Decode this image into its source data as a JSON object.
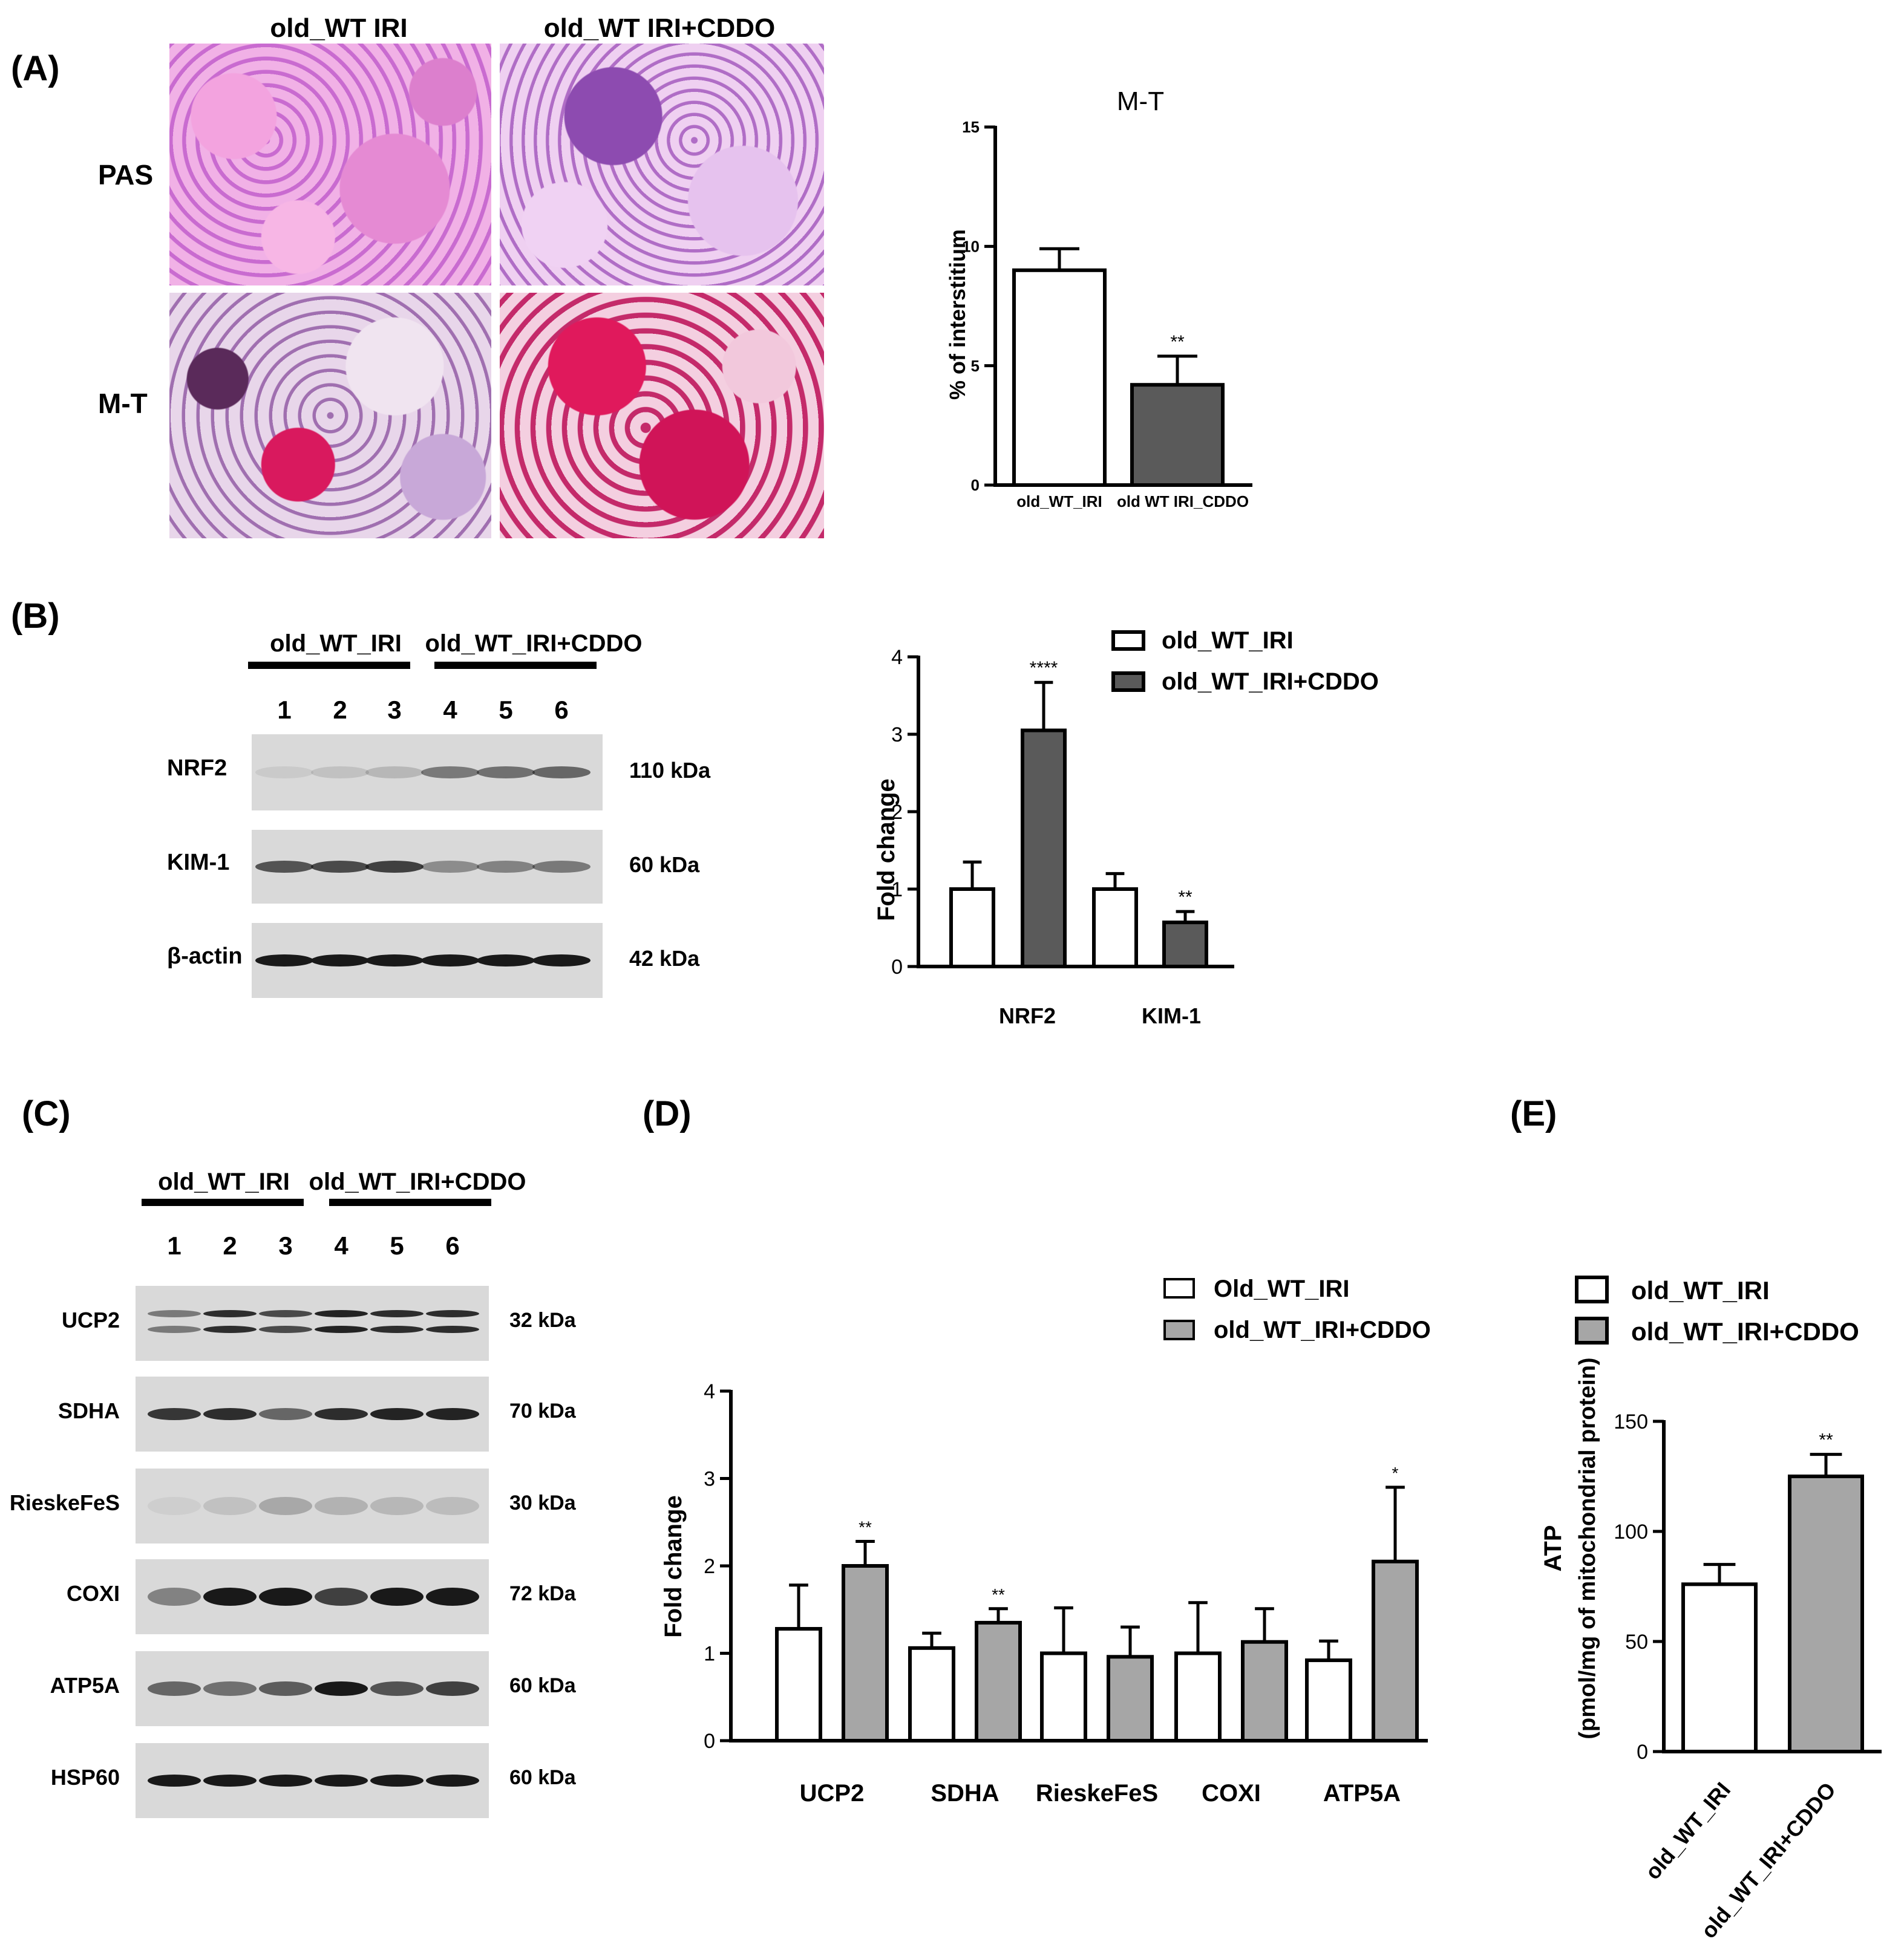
{
  "panelA": {
    "label": "(A)",
    "col_headers": [
      "old_WT IRI",
      "old_WT IRI+CDDO"
    ],
    "row_labels": [
      "PAS",
      "M-T"
    ]
  },
  "panelB": {
    "label": "(B)",
    "group_labels": [
      "old_WT_IRI",
      "old_WT_IRI+CDDO"
    ],
    "lanes": [
      "1",
      "2",
      "3",
      "4",
      "5",
      "6"
    ],
    "proteins": [
      {
        "name": "NRF2",
        "kda": "110 kDa"
      },
      {
        "name": "KIM-1",
        "kda": "60 kDa"
      },
      {
        "name": "β-actin",
        "kda": "42 kDa"
      }
    ]
  },
  "panelC": {
    "label": "(C)",
    "group_labels": [
      "old_WT_IRI",
      "old_WT_IRI+CDDO"
    ],
    "lanes": [
      "1",
      "2",
      "3",
      "4",
      "5",
      "6"
    ],
    "proteins": [
      {
        "name": "UCP2",
        "kda": "32 kDa"
      },
      {
        "name": "SDHA",
        "kda": "70 kDa"
      },
      {
        "name": "RieskeFeS",
        "kda": "30 kDa"
      },
      {
        "name": "COXI",
        "kda": "72 kDa"
      },
      {
        "name": "ATP5A",
        "kda": "60 kDa"
      },
      {
        "name": "HSP60",
        "kda": "60 kDa"
      }
    ]
  },
  "panelD": {
    "label": "(D)"
  },
  "panelE": {
    "label": "(E)"
  },
  "colors": {
    "treated_dark": "#5a5a5a",
    "treated_light": "#a6a6a6",
    "control": "#ffffff"
  },
  "chart_data": [
    {
      "type": "bar",
      "title": "M-T",
      "ylabel": "% of interstitium",
      "categories": [
        "old_WT_IRI",
        "old WT IRI_CDDO"
      ],
      "values": [
        9.0,
        4.2
      ],
      "errors": [
        0.9,
        1.2
      ],
      "significance": [
        "",
        "**"
      ],
      "ylim": [
        0,
        15
      ],
      "yticks": [
        0,
        5,
        10,
        15
      ]
    },
    {
      "type": "bar",
      "ylabel": "Fold change",
      "categories": [
        "NRF2",
        "KIM-1"
      ],
      "series": [
        {
          "name": "old_WT_IRI",
          "values": [
            1.0,
            1.0
          ],
          "errors": [
            0.35,
            0.2
          ],
          "significance": [
            "",
            ""
          ]
        },
        {
          "name": "old_WT_IRI+CDDO",
          "values": [
            3.05,
            0.57
          ],
          "errors": [
            0.62,
            0.14
          ],
          "significance": [
            "****",
            "**"
          ]
        }
      ],
      "ylim": [
        0,
        4
      ],
      "yticks": [
        0,
        1,
        2,
        3,
        4
      ],
      "legend": "top-right"
    },
    {
      "type": "bar",
      "ylabel": "Fold change",
      "categories": [
        "UCP2",
        "SDHA",
        "RieskeFeS",
        "COXI",
        "ATP5A"
      ],
      "series": [
        {
          "name": "Old_WT_IRI",
          "values": [
            1.28,
            1.06,
            1.0,
            1.0,
            0.92
          ],
          "errors": [
            0.5,
            0.17,
            0.52,
            0.58,
            0.22
          ],
          "significance": [
            "",
            "",
            "",
            "",
            ""
          ]
        },
        {
          "name": "old_WT_IRI+CDDO",
          "values": [
            2.0,
            1.35,
            0.96,
            1.13,
            2.05
          ],
          "errors": [
            0.28,
            0.16,
            0.34,
            0.38,
            0.85
          ],
          "significance": [
            "**",
            "**",
            "",
            "",
            "*"
          ]
        }
      ],
      "ylim": [
        0,
        4
      ],
      "yticks": [
        0,
        1,
        2,
        3,
        4
      ],
      "legend": "top"
    },
    {
      "type": "bar",
      "ylabel": "ATP",
      "ylabel2": "(pmol/mg of mitochondrial protein)",
      "categories": [
        "old_WT_IRI",
        "old_WT_IRI+CDDO"
      ],
      "values": [
        76,
        125
      ],
      "errors": [
        9,
        10
      ],
      "significance": [
        "",
        "**"
      ],
      "ylim": [
        0,
        150
      ],
      "yticks": [
        0,
        50,
        100,
        150
      ],
      "legend_labels": [
        "old_WT_IRI",
        "old_WT_IRI+CDDO"
      ],
      "legend": "top"
    }
  ]
}
